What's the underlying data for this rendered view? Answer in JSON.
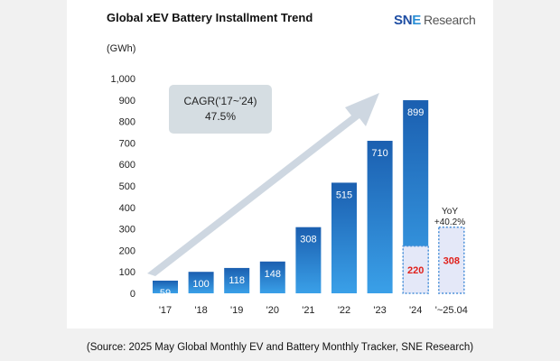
{
  "title": "Global xEV Battery Installment Trend",
  "logo": {
    "brand_prefix": "SN",
    "brand_e": "E",
    "brand_suffix": "Research"
  },
  "source": "(Source: 2025 May Global Monthly EV and Battery Monthly Tracker, SNE Research)",
  "colors": {
    "bar_top": "#1b5fb0",
    "bar_bottom": "#3aa0e8",
    "partial_fill": "#e4e8f8",
    "partial_text": "#e0201b",
    "arrow": "#c6d0dc",
    "callout": "#d5dde2"
  },
  "chart_data": {
    "type": "bar",
    "title": "Global xEV Battery Installment Trend",
    "ylabel": "(GWh)",
    "xlabel": "",
    "ylim": [
      0,
      1000
    ],
    "yticks": [
      0,
      100,
      200,
      300,
      400,
      500,
      600,
      700,
      800,
      900,
      1000
    ],
    "ytick_labels": [
      "0",
      "100",
      "200",
      "300",
      "400",
      "500",
      "600",
      "700",
      "800",
      "900",
      "1,000"
    ],
    "categories": [
      "'17",
      "'18",
      "'19",
      "'20",
      "'21",
      "'22",
      "'23",
      "'24",
      "'~25.04"
    ],
    "values": [
      59,
      100,
      118,
      148,
      308,
      515,
      710,
      899,
      308
    ],
    "partial_2024_jan_apr": 220,
    "ytd_2025_jan_apr": 308,
    "annotations": {
      "cagr_line1": "CAGR('17~'24)",
      "cagr_line2": "47.5%",
      "yoy_line1": "YoY",
      "yoy_line2": "+40.2%"
    },
    "legend": "none",
    "grid": false
  }
}
